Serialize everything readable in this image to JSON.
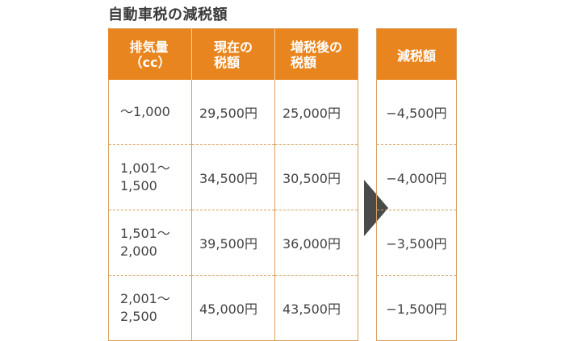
{
  "title": "自動車税の減税額",
  "table": {
    "headers": [
      {
        "line1": "排気量",
        "line2": "（cc）"
      },
      {
        "line1": "現在の",
        "line2": "税額"
      },
      {
        "line1": "増税後の",
        "line2": "税額"
      }
    ],
    "rows": [
      {
        "displacement": [
          "〜1,000"
        ],
        "current": "29,500円",
        "after": "25,000円"
      },
      {
        "displacement": [
          "1,001〜",
          "1,500"
        ],
        "current": "34,500円",
        "after": "30,500円"
      },
      {
        "displacement": [
          "1,501〜",
          "2,000"
        ],
        "current": "39,500円",
        "after": "36,000円"
      },
      {
        "displacement": [
          "2,001〜",
          "2,500"
        ],
        "current": "45,000円",
        "after": "43,500円"
      }
    ]
  },
  "reduction": {
    "header": "減税額",
    "values": [
      "−4,500円",
      "−4,000円",
      "−3,500円",
      "−1,500円"
    ]
  },
  "colors": {
    "header_orange": "#e8851e",
    "border": "#d8a060",
    "arrow": "#4a4a4a"
  }
}
